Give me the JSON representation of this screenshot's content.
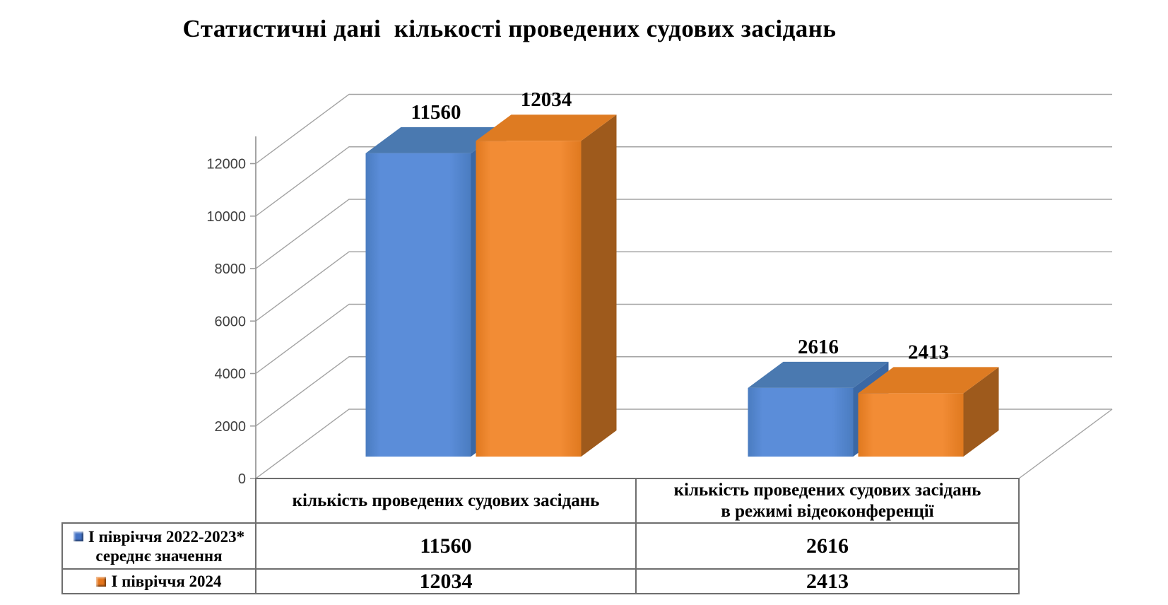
{
  "title": "Статистичні дані  кількості проведених судових засідань",
  "chart_data": {
    "type": "bar",
    "subtype": "3d-clustered-column",
    "title": "Статистичні дані  кількості проведених судових засідань",
    "categories": [
      "кількість проведених судових засідань",
      "кількість проведених судових засідань в режимі відеоконференції"
    ],
    "series": [
      {
        "name": "І півріччя 2022-2023* середнє значення",
        "values": [
          11560,
          2616
        ]
      },
      {
        "name": "І півріччя 2024",
        "values": [
          12034,
          2413
        ]
      }
    ],
    "yticks": [
      0,
      2000,
      4000,
      6000,
      8000,
      10000,
      12000
    ],
    "ylim": [
      0,
      13000
    ],
    "grid": true,
    "legend_position": "data-table-left",
    "data_labels": true
  },
  "table": {
    "col_headers": [
      {
        "line1": "кількість проведених судових засідань",
        "line2": ""
      },
      {
        "line1": "кількість проведених судових засідань",
        "line2": "в режимі відеоконференції"
      }
    ],
    "rows": [
      {
        "legend_color": "#4472C4",
        "label_line1": "І півріччя 2022-2023*",
        "label_line2": "середнє значення",
        "values": [
          "11560",
          "2616"
        ]
      },
      {
        "legend_color": "#E4751C",
        "label_line1": "І півріччя 2024",
        "label_line2": "",
        "values": [
          "12034",
          "2413"
        ]
      }
    ]
  },
  "colors": {
    "background": "#FFFFFF",
    "gridline": "#A3A3A3",
    "axis": "#9A9A9A",
    "table_border": "#6E6E6E",
    "tick_text": "#3F3F3F",
    "label_text": "#000000",
    "series": [
      {
        "front": "#5B8DD9",
        "front_edge": "#4A7CC0",
        "top": "#4A79B0",
        "side": "#3B68A4",
        "legend": "#4472C4"
      },
      {
        "front": "#F28C35",
        "front_edge": "#E0791F",
        "top": "#DE7B22",
        "side": "#9E5A1C",
        "legend": "#E4751C"
      }
    ]
  }
}
